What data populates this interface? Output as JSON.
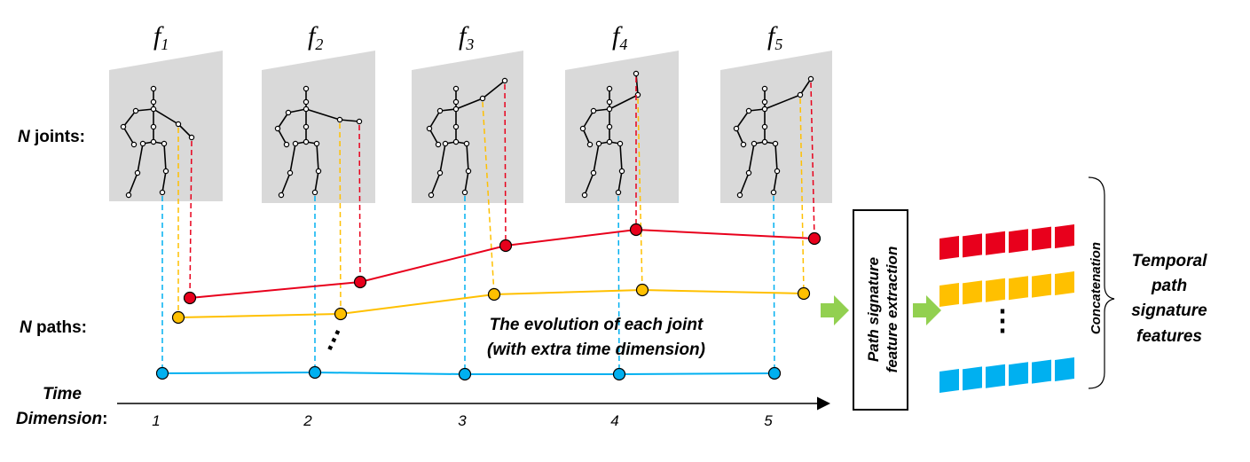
{
  "frames": [
    {
      "letter": "f",
      "sub": "1"
    },
    {
      "letter": "f",
      "sub": "2"
    },
    {
      "letter": "f",
      "sub": "3"
    },
    {
      "letter": "f",
      "sub": "4"
    },
    {
      "letter": "f",
      "sub": "5"
    }
  ],
  "labels": {
    "n_joints_n": "N",
    "n_joints_rest": " joints:",
    "n_paths_n": "N",
    "n_paths_rest": " paths:",
    "time_line1": "Time",
    "time_line2": "Dimension",
    "time_colon": ":",
    "evolution_line1": "The evolution of each joint",
    "evolution_line2": "(with extra time dimension)",
    "ellipsis": "…",
    "feature_box_line1": "Path signature",
    "feature_box_line2": "feature extraction",
    "concatenation": "Concatenation",
    "output_line1": "Temporal",
    "output_line2": "path",
    "output_line3": "signature",
    "output_line4": "features",
    "feature_ellipsis": "⋮"
  },
  "time_ticks": [
    "1",
    "2",
    "3",
    "4",
    "5"
  ],
  "colors": {
    "red": "#e8001c",
    "yellow": "#ffc000",
    "blue": "#00b0f0",
    "green": "#92d050",
    "frame": "#d9d9d9"
  }
}
